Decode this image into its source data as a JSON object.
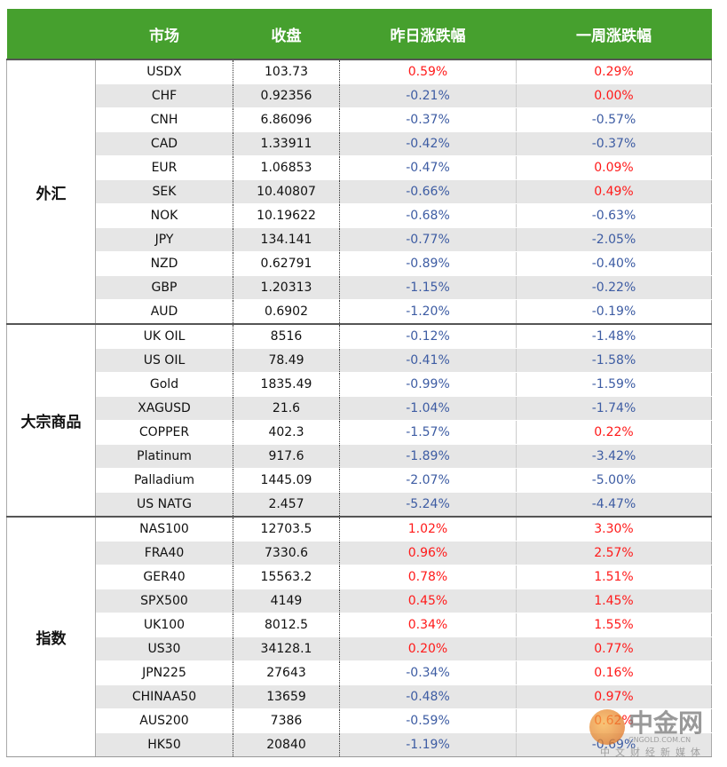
{
  "header": {
    "columns": [
      "市场",
      "收盘",
      "昨日涨跌幅",
      "一周涨跌幅"
    ]
  },
  "groups": [
    {
      "name": "外汇",
      "rows": [
        [
          "USDX",
          "103.73",
          "0.59%",
          "0.29%"
        ],
        [
          "CHF",
          "0.92356",
          "-0.21%",
          "0.00%"
        ],
        [
          "CNH",
          "6.86096",
          "-0.37%",
          "-0.57%"
        ],
        [
          "CAD",
          "1.33911",
          "-0.42%",
          "-0.37%"
        ],
        [
          "EUR",
          "1.06853",
          "-0.47%",
          "0.09%"
        ],
        [
          "SEK",
          "10.40807",
          "-0.66%",
          "0.49%"
        ],
        [
          "NOK",
          "10.19622",
          "-0.68%",
          "-0.63%"
        ],
        [
          "JPY",
          "134.141",
          "-0.77%",
          "-2.05%"
        ],
        [
          "NZD",
          "0.62791",
          "-0.89%",
          "-0.40%"
        ],
        [
          "GBP",
          "1.20313",
          "-1.15%",
          "-0.22%"
        ],
        [
          "AUD",
          "0.6902",
          "-1.20%",
          "-0.19%"
        ]
      ]
    },
    {
      "name": "大宗商品",
      "rows": [
        [
          "UK OIL",
          "8516",
          "-0.12%",
          "-1.48%"
        ],
        [
          "US OIL",
          "78.49",
          "-0.41%",
          "-1.58%"
        ],
        [
          "Gold",
          "1835.49",
          "-0.99%",
          "-1.59%"
        ],
        [
          "XAGUSD",
          "21.6",
          "-1.04%",
          "-1.74%"
        ],
        [
          "COPPER",
          "402.3",
          "-1.57%",
          "0.22%"
        ],
        [
          "Platinum",
          "917.6",
          "-1.89%",
          "-3.42%"
        ],
        [
          "Palladium",
          "1445.09",
          "-2.07%",
          "-5.00%"
        ],
        [
          "US NATG",
          "2.457",
          "-5.24%",
          "-4.47%"
        ]
      ]
    },
    {
      "name": "指数",
      "rows": [
        [
          "NAS100",
          "12703.5",
          "1.02%",
          "3.30%"
        ],
        [
          "FRA40",
          "7330.6",
          "0.96%",
          "2.57%"
        ],
        [
          "GER40",
          "15563.2",
          "0.78%",
          "1.51%"
        ],
        [
          "SPX500",
          "4149",
          "0.45%",
          "1.45%"
        ],
        [
          "UK100",
          "8012.5",
          "0.34%",
          "1.55%"
        ],
        [
          "US30",
          "34128.1",
          "0.20%",
          "0.77%"
        ],
        [
          "JPN225",
          "27643",
          "-0.34%",
          "0.16%"
        ],
        [
          "CHINAA50",
          "13659",
          "-0.48%",
          "0.97%"
        ],
        [
          "AUS200",
          "7386",
          "-0.59%",
          "0.62%"
        ],
        [
          "HK50",
          "20840",
          "-1.19%",
          "-0.69%"
        ]
      ]
    }
  ],
  "watermark": {
    "brand": "中金网",
    "domain": "CNGOLD.COM.CN",
    "slogan": "中文财经新媒体"
  },
  "colors": {
    "header": "#46a02e",
    "stripe": "#e6e6e6",
    "up": "#ff1a1a",
    "down": "#3d5ca3"
  }
}
